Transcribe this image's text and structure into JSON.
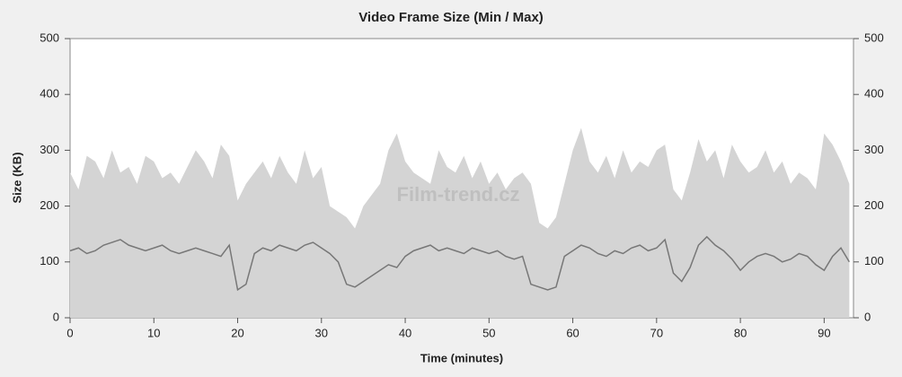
{
  "chart_data": {
    "type": "area",
    "title": "Video Frame Size (Min / Max)",
    "x_label": "Time (minutes)",
    "y_label": "Size (KB)",
    "watermark": "Film-trend.cz",
    "x": [
      0,
      1,
      2,
      3,
      4,
      5,
      6,
      7,
      8,
      9,
      10,
      11,
      12,
      13,
      14,
      15,
      16,
      17,
      18,
      19,
      20,
      21,
      22,
      23,
      24,
      25,
      26,
      27,
      28,
      29,
      30,
      31,
      32,
      33,
      34,
      35,
      36,
      37,
      38,
      39,
      40,
      41,
      42,
      43,
      44,
      45,
      46,
      47,
      48,
      49,
      50,
      51,
      52,
      53,
      54,
      55,
      56,
      57,
      58,
      59,
      60,
      61,
      62,
      63,
      64,
      65,
      66,
      67,
      68,
      69,
      70,
      71,
      72,
      73,
      74,
      75,
      76,
      77,
      78,
      79,
      80,
      81,
      82,
      83,
      84,
      85,
      86,
      87,
      88,
      89,
      90,
      91,
      92,
      93
    ],
    "series": [
      {
        "color": "#d4d4d4",
        "fill": true,
        "values": [
          260,
          230,
          290,
          280,
          250,
          300,
          260,
          270,
          240,
          290,
          280,
          250,
          260,
          240,
          270,
          300,
          280,
          250,
          310,
          290,
          210,
          240,
          260,
          280,
          250,
          290,
          260,
          240,
          300,
          250,
          270,
          200,
          190,
          180,
          160,
          200,
          220,
          240,
          300,
          330,
          280,
          260,
          250,
          240,
          300,
          270,
          260,
          290,
          250,
          280,
          240,
          260,
          230,
          250,
          260,
          240,
          170,
          160,
          180,
          240,
          300,
          340,
          280,
          260,
          290,
          250,
          300,
          260,
          280,
          270,
          300,
          310,
          230,
          210,
          260,
          320,
          280,
          300,
          250,
          310,
          280,
          260,
          270,
          300,
          260,
          280,
          240,
          260,
          250,
          230,
          330,
          310,
          280,
          240
        ]
      },
      {
        "color": "#777777",
        "fill": false,
        "values": [
          120,
          125,
          115,
          120,
          130,
          135,
          140,
          130,
          125,
          120,
          125,
          130,
          120,
          115,
          120,
          125,
          120,
          115,
          110,
          130,
          50,
          60,
          115,
          125,
          120,
          130,
          125,
          120,
          130,
          135,
          125,
          115,
          100,
          60,
          55,
          65,
          75,
          85,
          95,
          90,
          110,
          120,
          125,
          130,
          120,
          125,
          120,
          115,
          125,
          120,
          115,
          120,
          110,
          105,
          110,
          60,
          55,
          50,
          55,
          110,
          120,
          130,
          125,
          115,
          110,
          120,
          115,
          125,
          130,
          120,
          125,
          140,
          80,
          65,
          90,
          130,
          145,
          130,
          120,
          105,
          85,
          100,
          110,
          115,
          110,
          100,
          105,
          115,
          110,
          95,
          85,
          110,
          125,
          100
        ]
      }
    ],
    "xlim": [
      0,
      93.5
    ],
    "xticks": [
      0,
      10,
      20,
      30,
      40,
      50,
      60,
      70,
      80,
      90
    ],
    "ylim": [
      0,
      500
    ],
    "yticks": [
      0,
      100,
      200,
      300,
      400,
      500
    ],
    "y2lim": [
      0,
      500
    ],
    "y2ticks": [
      0,
      100,
      200,
      300,
      400,
      500
    ]
  }
}
